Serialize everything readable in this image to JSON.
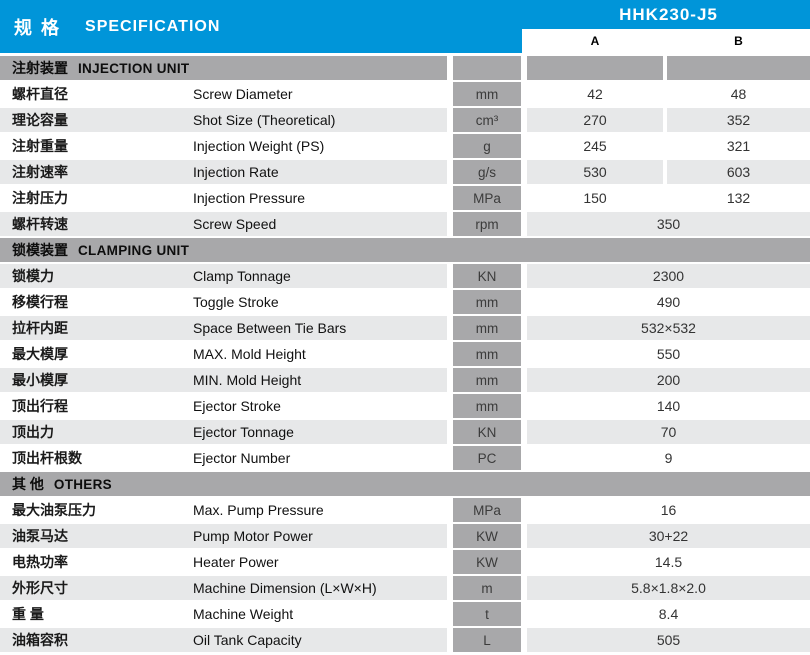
{
  "header": {
    "title_zh": "规 格",
    "title_en": "SPECIFICATION",
    "model": "HHK230-J5",
    "col_a": "A",
    "col_b": "B"
  },
  "colors": {
    "accent_blue": "#0095d9",
    "section_gray": "#a8a8aa",
    "row_alt_gray": "#e7e8e9"
  },
  "table": {
    "sections": [
      {
        "zh": "注射装置",
        "en": "INJECTION UNIT",
        "split_header": true,
        "rows": [
          {
            "zh": "螺杆直径",
            "en": "Screw Diameter",
            "unit": "mm",
            "a": "42",
            "b": "48",
            "shaded": false
          },
          {
            "zh": "理论容量",
            "en": "Shot Size (Theoretical)",
            "unit": "cm³",
            "a": "270",
            "b": "352",
            "shaded": true
          },
          {
            "zh": "注射重量",
            "en": "Injection Weight (PS)",
            "unit": "g",
            "a": "245",
            "b": "321",
            "shaded": false
          },
          {
            "zh": "注射速率",
            "en": "Injection Rate",
            "unit": "g/s",
            "a": "530",
            "b": "603",
            "shaded": true
          },
          {
            "zh": "注射压力",
            "en": "Injection Pressure",
            "unit": "MPa",
            "a": "150",
            "b": "132",
            "shaded": false
          },
          {
            "zh": "螺杆转速",
            "en": "Screw Speed",
            "unit": "rpm",
            "value": "350",
            "shaded": true
          }
        ]
      },
      {
        "zh": "锁模装置",
        "en": "CLAMPING UNIT",
        "split_header": false,
        "rows": [
          {
            "zh": "锁模力",
            "en": "Clamp Tonnage",
            "unit": "KN",
            "value": "2300",
            "shaded": true
          },
          {
            "zh": "移模行程",
            "en": "Toggle Stroke",
            "unit": "mm",
            "value": "490",
            "shaded": false
          },
          {
            "zh": "拉杆内距",
            "en": "Space Between Tie Bars",
            "unit": "mm",
            "value": "532×532",
            "shaded": true
          },
          {
            "zh": "最大模厚",
            "en": "MAX. Mold Height",
            "unit": "mm",
            "value": "550",
            "shaded": false
          },
          {
            "zh": "最小模厚",
            "en": "MIN. Mold Height",
            "unit": "mm",
            "value": "200",
            "shaded": true
          },
          {
            "zh": "顶出行程",
            "en": "Ejector Stroke",
            "unit": "mm",
            "value": "140",
            "shaded": false
          },
          {
            "zh": "顶出力",
            "en": "Ejector Tonnage",
            "unit": "KN",
            "value": "70",
            "shaded": true
          },
          {
            "zh": "顶出杆根数",
            "en": "Ejector Number",
            "unit": "PC",
            "value": "9",
            "shaded": false
          }
        ]
      },
      {
        "zh": "其 他",
        "en": "OTHERS",
        "split_header": false,
        "rows": [
          {
            "zh": "最大油泵压力",
            "en": "Max. Pump Pressure",
            "unit": "MPa",
            "value": "16",
            "shaded": false
          },
          {
            "zh": "油泵马达",
            "en": "Pump Motor Power",
            "unit": "KW",
            "value": "30+22",
            "shaded": true
          },
          {
            "zh": "电热功率",
            "en": "Heater Power",
            "unit": "KW",
            "value": "14.5",
            "shaded": false
          },
          {
            "zh": "外形尺寸",
            "en": "Machine Dimension (L×W×H)",
            "unit": "m",
            "value": "5.8×1.8×2.0",
            "shaded": true
          },
          {
            "zh": "重 量",
            "en": "Machine Weight",
            "unit": "t",
            "value": "8.4",
            "shaded": false
          },
          {
            "zh": "油箱容积",
            "en": "Oil Tank Capacity",
            "unit": "L",
            "value": "505",
            "shaded": true
          }
        ]
      }
    ]
  }
}
